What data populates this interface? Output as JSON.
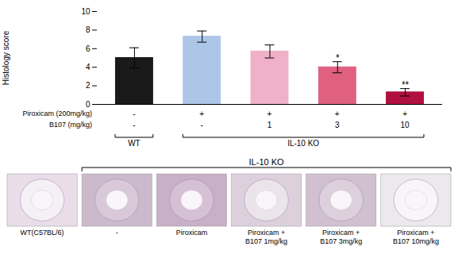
{
  "chart_data": {
    "type": "bar",
    "categories": [
      null,
      null,
      null,
      null,
      null
    ],
    "values": [
      5.0,
      7.3,
      5.7,
      4.0,
      1.3
    ],
    "errors": [
      1.1,
      0.6,
      0.7,
      0.6,
      0.4
    ],
    "colors": [
      "#1a1a1a",
      "#adc6e8",
      "#f0b0c8",
      "#e06080",
      "#b01040"
    ],
    "ylabel": "Histology score",
    "ylim": [
      0,
      10
    ],
    "yticks": [
      0,
      2,
      4,
      6,
      8,
      10
    ],
    "grid": false,
    "tick_labels": "y",
    "annotations": [
      {
        "text": "*",
        "x": 3,
        "y": 4.65
      },
      {
        "text": "**",
        "x": 4,
        "y": 1.78
      }
    ],
    "condition_rows": [
      {
        "label": "Piroxicam (200mg/kg)",
        "values": [
          "-",
          "+",
          "+",
          "+",
          "+"
        ]
      },
      {
        "label": "B107 (mg/kg)",
        "values": [
          "-",
          "-",
          "1",
          "3",
          "10"
        ]
      }
    ],
    "groups": [
      {
        "label": "WT",
        "first": 0,
        "last": 0
      },
      {
        "label": "IL-10 KO",
        "first": 1,
        "last": 4
      }
    ],
    "panels": {
      "title": "IL-10 KO",
      "title_first": 1,
      "title_last": 5,
      "labels": [
        "WT(C57BL/6)",
        "-",
        "Piroxicam",
        "Piroxicam +\nB107 1mg/kg",
        "Piroxicam +\nB107 3mg/kg",
        "Piroxicam +\nB107 10mg/kg"
      ],
      "colors": [
        "#e8dde8",
        "#cbbacb",
        "#c8b0c8",
        "#ddd0dd",
        "#d0c0d0",
        "#ece8ec"
      ],
      "inner_colors": [
        "#f5f0f5",
        "#d8c8d8",
        "#d5c0d5",
        "#ebe5eb",
        "#ddd0dd",
        "#f8f5f8"
      ]
    }
  }
}
